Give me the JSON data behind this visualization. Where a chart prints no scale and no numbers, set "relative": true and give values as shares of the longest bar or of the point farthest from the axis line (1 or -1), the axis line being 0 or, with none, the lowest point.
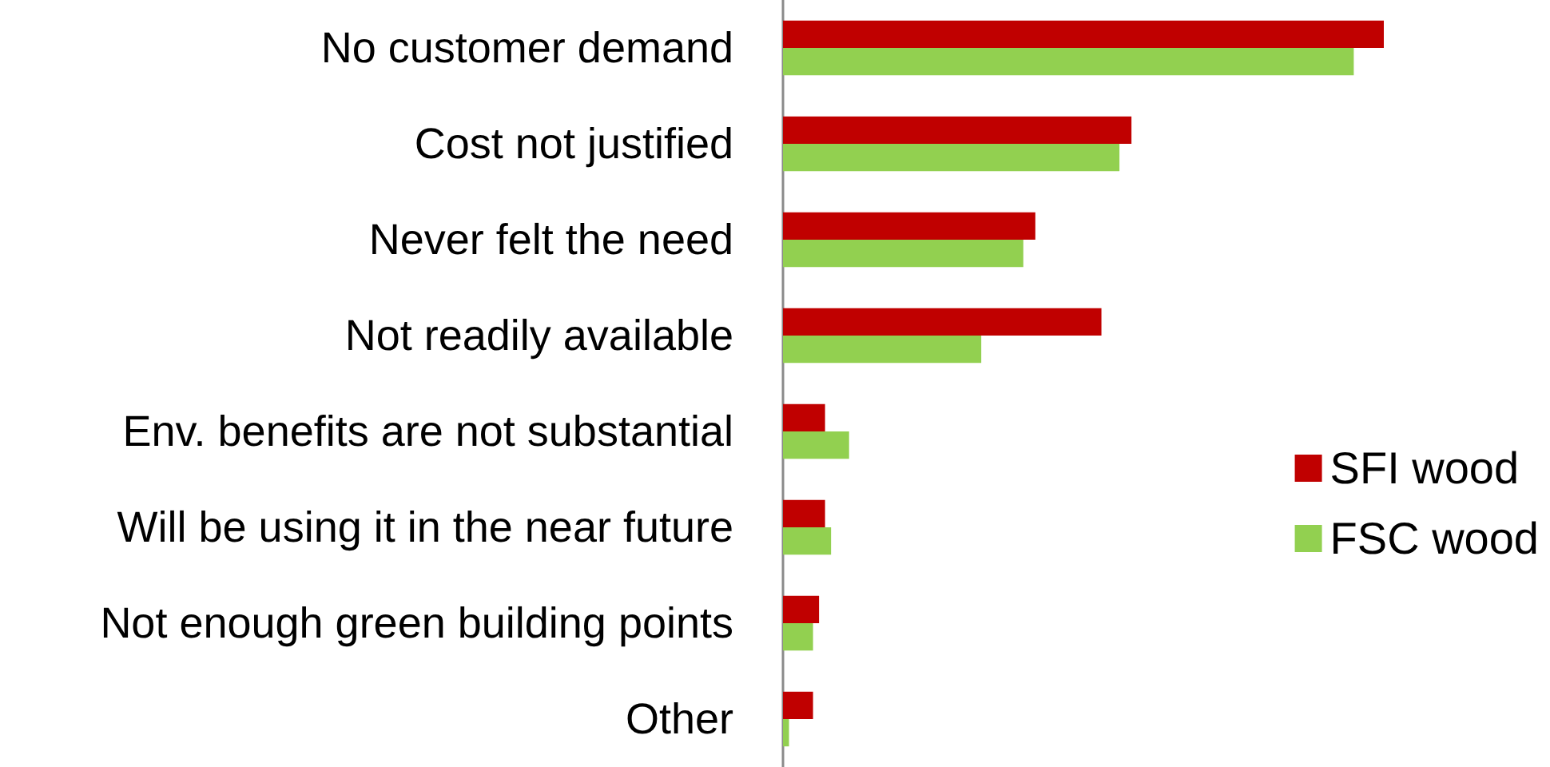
{
  "chart_data": {
    "type": "bar",
    "orientation": "horizontal",
    "relative": true,
    "legend": "right",
    "categories": [
      "No customer demand",
      "Cost not justified",
      "Never felt the need",
      "Not readily available",
      "Env. benefits are not substantial",
      "Will be using it in the near future",
      "Not enough green building points",
      "Other"
    ],
    "series": [
      {
        "name": "SFI wood",
        "color": "#c00000",
        "values": [
          1,
          0.58,
          0.42,
          0.53,
          0.07,
          0.07,
          0.06,
          0.05
        ]
      },
      {
        "name": "FSC wood",
        "color": "#92d050",
        "values": [
          0.95,
          0.56,
          0.4,
          0.33,
          0.11,
          0.08,
          0.05,
          0.01
        ]
      }
    ]
  }
}
